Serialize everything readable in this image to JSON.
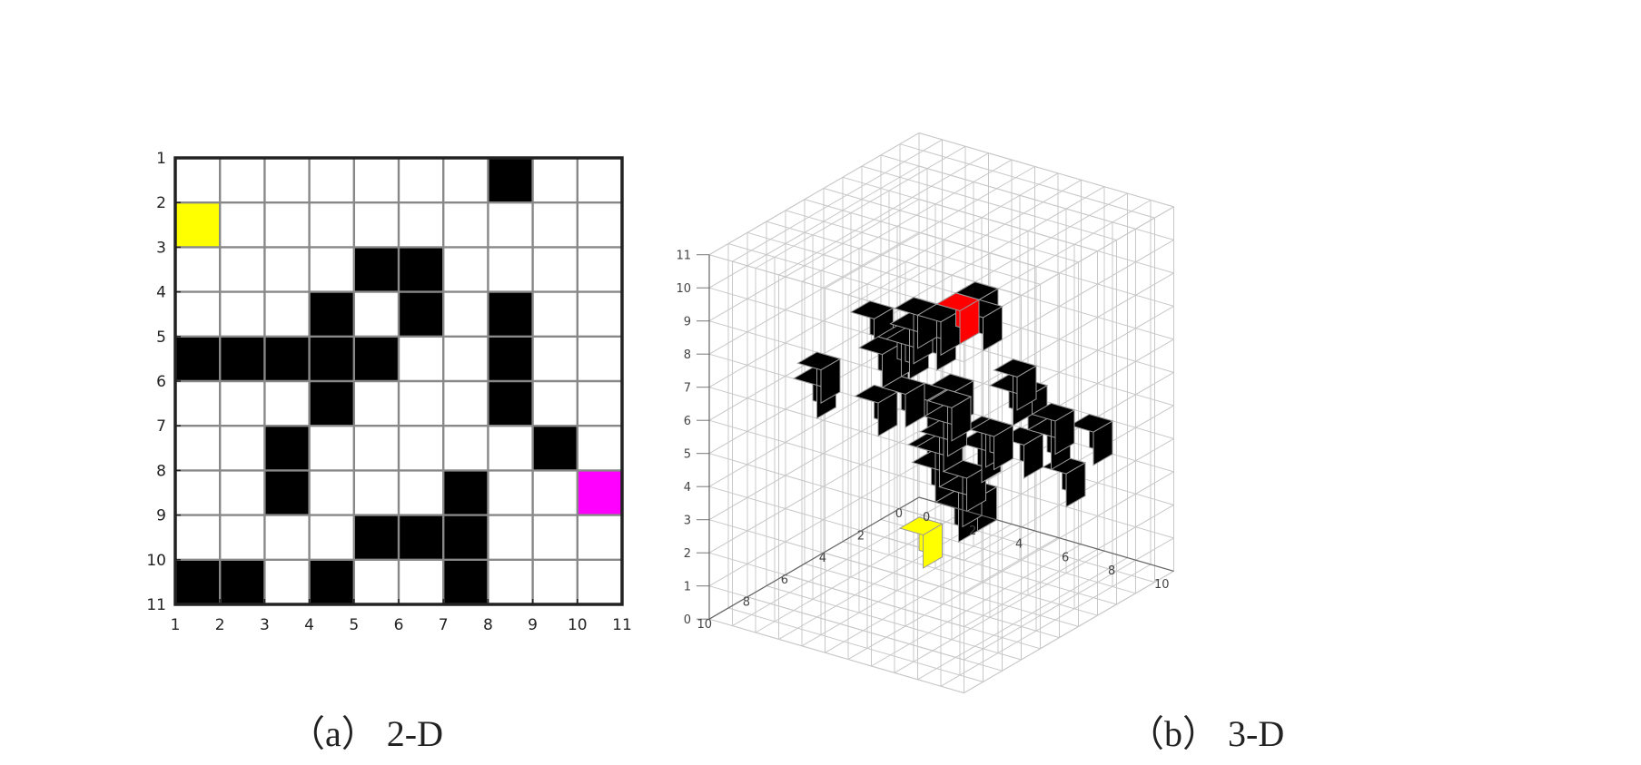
{
  "panel_2d": {
    "caption": "（a） 2-D",
    "grid_size": 10,
    "row_tick_labels": [
      "1",
      "2",
      "3",
      "4",
      "5",
      "6",
      "7",
      "8",
      "9",
      "10",
      "11"
    ],
    "col_tick_labels": [
      "1",
      "2",
      "3",
      "4",
      "5",
      "6",
      "7",
      "8",
      "9",
      "10",
      "11"
    ],
    "obstacle_cells": [
      [
        8,
        1
      ],
      [
        5,
        3
      ],
      [
        6,
        3
      ],
      [
        4,
        4
      ],
      [
        6,
        4
      ],
      [
        8,
        4
      ],
      [
        1,
        5
      ],
      [
        2,
        5
      ],
      [
        3,
        5
      ],
      [
        4,
        5
      ],
      [
        5,
        5
      ],
      [
        8,
        5
      ],
      [
        4,
        6
      ],
      [
        8,
        6
      ],
      [
        3,
        7
      ],
      [
        9,
        7
      ],
      [
        3,
        8
      ],
      [
        7,
        8
      ],
      [
        5,
        9
      ],
      [
        6,
        9
      ],
      [
        7,
        9
      ],
      [
        1,
        10
      ],
      [
        2,
        10
      ],
      [
        4,
        10
      ],
      [
        7,
        10
      ]
    ],
    "start_cell": [
      1,
      2
    ],
    "goal_cell": [
      10,
      8
    ],
    "colors": {
      "obstacle": "#000000",
      "start": "#ffff00",
      "goal": "#ff00ff",
      "free": "#ffffff",
      "grid_line": "#888888",
      "border": "#222222"
    }
  },
  "panel_3d": {
    "caption": "（b） 3-D",
    "z_tick_labels": [
      "0",
      "1",
      "2",
      "3",
      "4",
      "5",
      "6",
      "7",
      "8",
      "9",
      "10",
      "11"
    ],
    "x_tick_labels": [
      "0",
      "2",
      "4",
      "6",
      "8",
      "10"
    ],
    "y_tick_labels": [
      "0",
      "2",
      "4",
      "6",
      "8",
      "10"
    ],
    "obstacle_voxels": [
      [
        9,
        8,
        10
      ],
      [
        10,
        9,
        10
      ],
      [
        8,
        9,
        9
      ],
      [
        6,
        8,
        8
      ],
      [
        4,
        6,
        7
      ],
      [
        9,
        10,
        10
      ],
      [
        7,
        9,
        9
      ],
      [
        8,
        10,
        10
      ],
      [
        2,
        4,
        6
      ],
      [
        1,
        3,
        5
      ],
      [
        2,
        5,
        7
      ],
      [
        5,
        7,
        6
      ],
      [
        4,
        7,
        7
      ],
      [
        6,
        6,
        5
      ],
      [
        5,
        5,
        4
      ],
      [
        4,
        4,
        3
      ],
      [
        6,
        4,
        4
      ],
      [
        7,
        3,
        5
      ],
      [
        8,
        5,
        6
      ],
      [
        9,
        6,
        7
      ],
      [
        3,
        2,
        4
      ],
      [
        1,
        1,
        3
      ],
      [
        2,
        2,
        2
      ],
      [
        3,
        3,
        2
      ],
      [
        5,
        3,
        3
      ],
      [
        6,
        2,
        3
      ],
      [
        5,
        4,
        2
      ],
      [
        4,
        2,
        1
      ],
      [
        4,
        3,
        1
      ],
      [
        6,
        5,
        3
      ],
      [
        8,
        3,
        4
      ],
      [
        9,
        4,
        5
      ],
      [
        2,
        8,
        6
      ],
      [
        3,
        9,
        7
      ],
      [
        9,
        2,
        4
      ],
      [
        7,
        1,
        2
      ],
      [
        8,
        6,
        5
      ],
      [
        7,
        7,
        6
      ],
      [
        3,
        6,
        5
      ]
    ],
    "start_voxel": [
      0,
      0,
      0
    ],
    "goal_voxel": [
      9,
      9,
      11
    ],
    "colors": {
      "obstacle": "#000000",
      "start": "#ffff00",
      "goal": "#ff0000",
      "grid_line": "#c8c8c8",
      "voxel_edge": "#9a9a9a"
    }
  }
}
